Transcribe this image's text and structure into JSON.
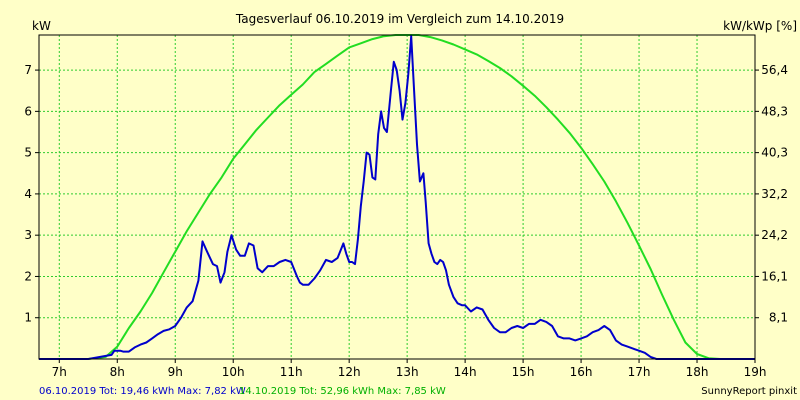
{
  "chart_data": {
    "type": "line",
    "title": "Tagesverlauf 06.10.2019 im Vergleich zum 14.10.2019",
    "ylabel_left": "kW",
    "ylabel_right": "kW/kWp [%]",
    "xlim": [
      6.65,
      19.0
    ],
    "ylim_left": [
      0,
      7.85
    ],
    "x_ticks": [
      7,
      8,
      9,
      10,
      11,
      12,
      13,
      14,
      15,
      16,
      17,
      18,
      19
    ],
    "x_tick_labels": [
      "7h",
      "8h",
      "9h",
      "10h",
      "11h",
      "12h",
      "13h",
      "14h",
      "15h",
      "16h",
      "17h",
      "18h",
      "19h"
    ],
    "y_left_ticks": [
      1,
      2,
      3,
      4,
      5,
      6,
      7
    ],
    "y_left_tick_labels": [
      "1",
      "2",
      "3",
      "4",
      "5",
      "6",
      "7"
    ],
    "y_right_ticks": [
      1,
      2,
      3,
      4,
      5,
      6,
      7
    ],
    "y_right_tick_labels": [
      "8,1",
      "16,1",
      "24,2",
      "32,2",
      "40,3",
      "48,3",
      "56,4"
    ],
    "grid": true,
    "series": [
      {
        "name": "06.10.2019 Tot: 19,46 kWh Max: 7,82 kW",
        "color": "#0000cc",
        "x": [
          6.65,
          7.5,
          7.9,
          7.95,
          8.05,
          8.1,
          8.2,
          8.3,
          8.4,
          8.5,
          8.6,
          8.7,
          8.8,
          8.9,
          9.0,
          9.1,
          9.2,
          9.3,
          9.4,
          9.47,
          9.55,
          9.65,
          9.72,
          9.78,
          9.85,
          9.9,
          9.97,
          10.05,
          10.12,
          10.2,
          10.27,
          10.35,
          10.42,
          10.5,
          10.6,
          10.7,
          10.8,
          10.9,
          11.0,
          11.1,
          11.15,
          11.2,
          11.25,
          11.3,
          11.4,
          11.5,
          11.6,
          11.7,
          11.8,
          11.9,
          11.95,
          12.0,
          12.05,
          12.1,
          12.15,
          12.2,
          12.25,
          12.3,
          12.35,
          12.4,
          12.45,
          12.5,
          12.55,
          12.6,
          12.65,
          12.72,
          12.77,
          12.82,
          12.87,
          12.92,
          12.97,
          13.02,
          13.07,
          13.12,
          13.17,
          13.22,
          13.28,
          13.32,
          13.37,
          13.42,
          13.47,
          13.52,
          13.57,
          13.62,
          13.67,
          13.72,
          13.8,
          13.87,
          13.95,
          14.0,
          14.1,
          14.2,
          14.3,
          14.4,
          14.5,
          14.6,
          14.7,
          14.8,
          14.9,
          15.0,
          15.1,
          15.2,
          15.3,
          15.4,
          15.5,
          15.6,
          15.7,
          15.8,
          15.9,
          16.0,
          16.1,
          16.2,
          16.3,
          16.4,
          16.5,
          16.6,
          16.7,
          16.8,
          16.9,
          17.0,
          17.1,
          17.2,
          17.3,
          17.4,
          17.5,
          17.6,
          17.7,
          17.8,
          17.9,
          18.0,
          19.0
        ],
        "values": [
          0,
          0,
          0.1,
          0.2,
          0.2,
          0.18,
          0.18,
          0.28,
          0.35,
          0.4,
          0.5,
          0.6,
          0.68,
          0.72,
          0.8,
          1.0,
          1.25,
          1.4,
          1.9,
          2.85,
          2.6,
          2.3,
          2.25,
          1.85,
          2.1,
          2.6,
          3.0,
          2.65,
          2.5,
          2.5,
          2.8,
          2.75,
          2.2,
          2.1,
          2.25,
          2.25,
          2.35,
          2.4,
          2.35,
          2.0,
          1.85,
          1.8,
          1.8,
          1.8,
          1.95,
          2.15,
          2.4,
          2.35,
          2.45,
          2.8,
          2.55,
          2.35,
          2.35,
          2.3,
          2.9,
          3.7,
          4.3,
          5.0,
          4.95,
          4.4,
          4.35,
          5.45,
          6.0,
          5.6,
          5.5,
          6.5,
          7.2,
          7.0,
          6.5,
          5.8,
          6.2,
          6.9,
          7.82,
          6.5,
          5.2,
          4.3,
          4.5,
          3.8,
          2.8,
          2.55,
          2.35,
          2.3,
          2.4,
          2.35,
          2.15,
          1.8,
          1.5,
          1.35,
          1.3,
          1.3,
          1.15,
          1.25,
          1.2,
          0.95,
          0.75,
          0.65,
          0.65,
          0.75,
          0.8,
          0.75,
          0.85,
          0.85,
          0.95,
          0.9,
          0.8,
          0.55,
          0.5,
          0.5,
          0.45,
          0.5,
          0.55,
          0.65,
          0.7,
          0.8,
          0.7,
          0.45,
          0.35,
          0.3,
          0.25,
          0.2,
          0.15,
          0.05,
          0,
          0,
          0,
          0,
          0,
          0,
          0,
          0,
          0
        ]
      },
      {
        "name": "14.10.2019 Tot: 52,96 kWh Max: 7,85 kW",
        "color": "#22dd22",
        "x": [
          6.65,
          7.5,
          7.8,
          8.0,
          8.2,
          8.4,
          8.6,
          8.8,
          9.0,
          9.2,
          9.4,
          9.6,
          9.8,
          10.0,
          10.2,
          10.4,
          10.6,
          10.8,
          11.0,
          11.2,
          11.4,
          11.6,
          11.8,
          12.0,
          12.2,
          12.4,
          12.6,
          12.8,
          13.0,
          13.2,
          13.4,
          13.6,
          13.8,
          14.0,
          14.2,
          14.4,
          14.6,
          14.8,
          15.0,
          15.2,
          15.4,
          15.6,
          15.8,
          16.0,
          16.2,
          16.4,
          16.6,
          16.8,
          17.0,
          17.2,
          17.4,
          17.6,
          17.8,
          18.0,
          18.2,
          18.4,
          19.0
        ],
        "values": [
          0,
          0,
          0.05,
          0.3,
          0.75,
          1.15,
          1.6,
          2.1,
          2.6,
          3.1,
          3.55,
          4.0,
          4.4,
          4.85,
          5.2,
          5.55,
          5.85,
          6.15,
          6.4,
          6.65,
          6.95,
          7.15,
          7.35,
          7.55,
          7.65,
          7.75,
          7.82,
          7.85,
          7.85,
          7.85,
          7.8,
          7.72,
          7.62,
          7.5,
          7.38,
          7.22,
          7.05,
          6.85,
          6.62,
          6.38,
          6.1,
          5.8,
          5.48,
          5.12,
          4.72,
          4.3,
          3.82,
          3.3,
          2.75,
          2.18,
          1.55,
          0.95,
          0.4,
          0.12,
          0.02,
          0,
          0
        ]
      }
    ],
    "footer_right": "SunnyReport pinxit"
  }
}
